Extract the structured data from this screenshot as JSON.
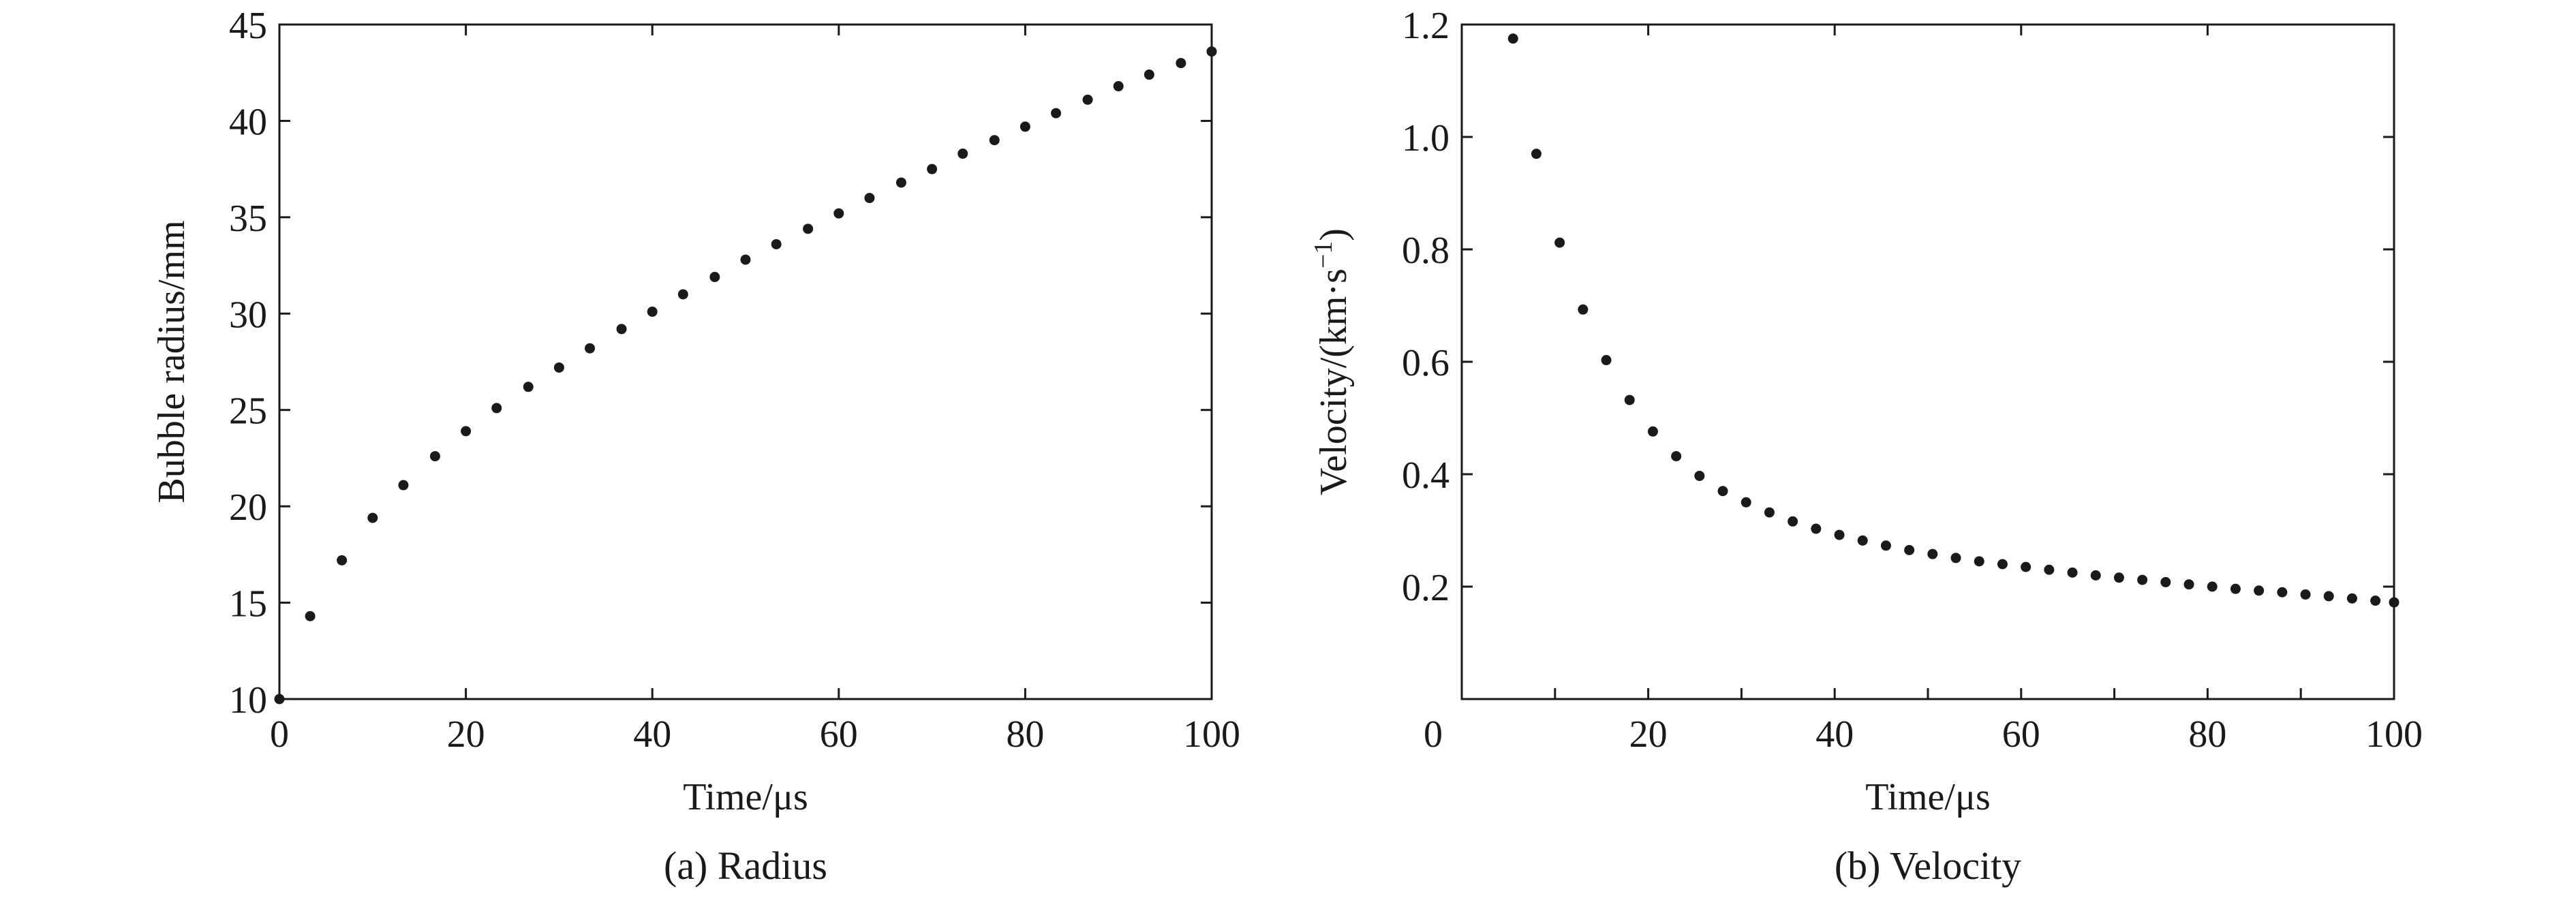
{
  "chart_data": [
    {
      "type": "scatter",
      "caption": "(a) Radius",
      "xlabel": "Time/μs",
      "ylabel": "Bubble radius/mm",
      "xlim": [
        0,
        100
      ],
      "ylim": [
        10,
        45
      ],
      "xticks": [
        0,
        20,
        40,
        60,
        80,
        100
      ],
      "yticks": [
        10,
        15,
        20,
        25,
        30,
        35,
        40,
        45
      ],
      "xtick_labels": [
        "0",
        "20",
        "40",
        "60",
        "80",
        "100"
      ],
      "ytick_labels": [
        "10",
        "15",
        "20",
        "25",
        "30",
        "35",
        "40",
        "45"
      ],
      "grid": false,
      "color": "#1a1a1a",
      "series": [
        {
          "x": [
            0,
            3.3,
            6.7,
            10,
            13.3,
            16.7,
            20,
            23.3,
            26.7,
            30,
            33.3,
            36.7,
            40,
            43.3,
            46.7,
            50,
            53.3,
            56.7,
            60,
            63.3,
            66.7,
            70,
            73.3,
            76.7,
            80,
            83.3,
            86.7,
            90,
            93.3,
            96.7,
            100
          ],
          "y": [
            10.0,
            14.3,
            17.2,
            19.4,
            21.1,
            22.6,
            23.9,
            25.1,
            26.2,
            27.2,
            28.2,
            29.2,
            30.1,
            31.0,
            31.9,
            32.8,
            33.6,
            34.4,
            35.2,
            36.0,
            36.8,
            37.5,
            38.3,
            39.0,
            39.7,
            40.4,
            41.1,
            41.8,
            42.4,
            43.0,
            43.6
          ]
        }
      ]
    },
    {
      "type": "scatter",
      "caption": "(b) Velocity",
      "xlabel": "Time/μs",
      "ylabel_base": "Velocity/(km·s",
      "ylabel_sup": "−1",
      "ylabel_close": ")",
      "xlim": [
        0,
        100
      ],
      "ylim": [
        0,
        1.2
      ],
      "xticks": [
        0,
        20,
        40,
        60,
        80,
        100
      ],
      "yticks": [
        0.2,
        0.4,
        0.6,
        0.8,
        1.0,
        1.2
      ],
      "xtick_labels": [
        "0",
        "20",
        "40",
        "60",
        "80",
        "100"
      ],
      "ytick_labels": [
        "0.2",
        "0.4",
        "0.6",
        "0.8",
        "1.0",
        "1.2"
      ],
      "grid": false,
      "color": "#1a1a1a",
      "series": [
        {
          "x": [
            5.5,
            8,
            10.5,
            13,
            15.5,
            18,
            20.5,
            23,
            25.5,
            28,
            30.5,
            33,
            35.5,
            38,
            40.5,
            43,
            45.5,
            48,
            50.5,
            53,
            55.5,
            58,
            60.5,
            63,
            65.5,
            68,
            70.5,
            73,
            75.5,
            78,
            80.5,
            83,
            85.5,
            88,
            90.5,
            93,
            95.5,
            98,
            100
          ],
          "y": [
            1.175,
            0.97,
            0.812,
            0.693,
            0.603,
            0.532,
            0.476,
            0.432,
            0.397,
            0.37,
            0.35,
            0.332,
            0.316,
            0.303,
            0.292,
            0.282,
            0.273,
            0.265,
            0.258,
            0.251,
            0.245,
            0.24,
            0.235,
            0.23,
            0.225,
            0.22,
            0.216,
            0.212,
            0.208,
            0.204,
            0.2,
            0.196,
            0.193,
            0.19,
            0.186,
            0.183,
            0.179,
            0.175,
            0.172
          ]
        }
      ]
    }
  ]
}
